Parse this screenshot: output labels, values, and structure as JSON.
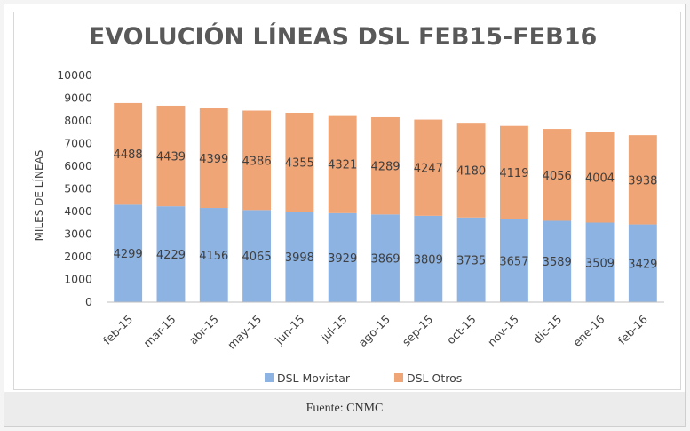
{
  "caption": "Fuente: CNMC",
  "chart_data": {
    "type": "bar",
    "stacked": true,
    "title": "EVOLUCIÓN LÍNEAS DSL FEB15-FEB16",
    "xlabel": "",
    "ylabel": "MILES DE LÍNEAS",
    "ylim": [
      0,
      10000
    ],
    "yticks": [
      0,
      1000,
      2000,
      3000,
      4000,
      5000,
      6000,
      7000,
      8000,
      9000,
      10000
    ],
    "grid": false,
    "legend_position": "bottom",
    "categories": [
      "feb-15",
      "mar-15",
      "abr-15",
      "may-15",
      "jun-15",
      "jul-15",
      "ago-15",
      "sep-15",
      "oct-15",
      "nov-15",
      "dic-15",
      "ene-16",
      "feb-16"
    ],
    "series": [
      {
        "name": "DSL Movistar",
        "color": "#8db3e2",
        "values": [
          4299,
          4229,
          4156,
          4065,
          3998,
          3929,
          3869,
          3809,
          3735,
          3657,
          3589,
          3509,
          3429
        ]
      },
      {
        "name": "DSL Otros",
        "color": "#f0a576",
        "values": [
          4488,
          4439,
          4399,
          4386,
          4355,
          4321,
          4289,
          4247,
          4180,
          4119,
          4056,
          4004,
          3938
        ]
      }
    ]
  }
}
